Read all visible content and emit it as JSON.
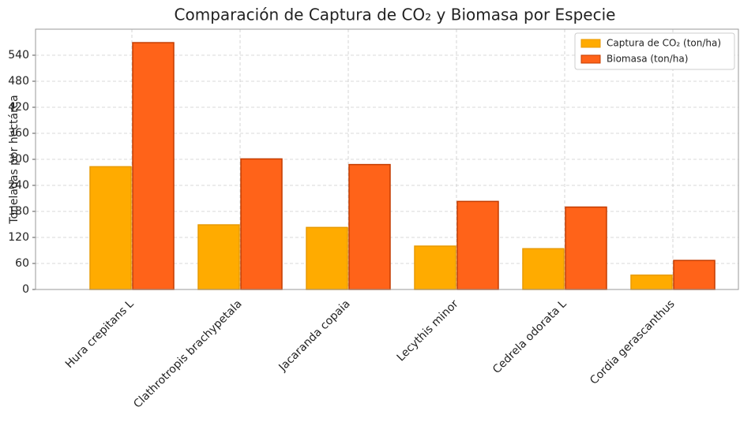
{
  "chart_data": {
    "type": "bar",
    "title": "Comparación de Captura de CO₂ y Biomasa por Especie",
    "y_label": "Toneladas por hectárea",
    "categories": [
      "Hura crepitans L",
      "Clathrotropis brachypetala",
      "Jacaranda copaia",
      "Lecythis minor",
      "Cedrela odorata L",
      "Cordia gerascanthus"
    ],
    "series": [
      {
        "name": "Captura de CO₂ (ton/ha)",
        "color": "#ffab00",
        "edge": "#e89a00",
        "values": [
          283,
          149,
          143,
          100,
          94,
          33
        ]
      },
      {
        "name": "Biomasa (ton/ha)",
        "color": "#ff6319",
        "edge": "#c43c00",
        "values": [
          569,
          301,
          288,
          203,
          190,
          67
        ]
      }
    ],
    "ylim": [
      0,
      600
    ],
    "yticks": [
      0,
      60,
      120,
      180,
      240,
      300,
      360,
      420,
      480,
      540
    ],
    "grid": true,
    "legend": "upper-right"
  }
}
